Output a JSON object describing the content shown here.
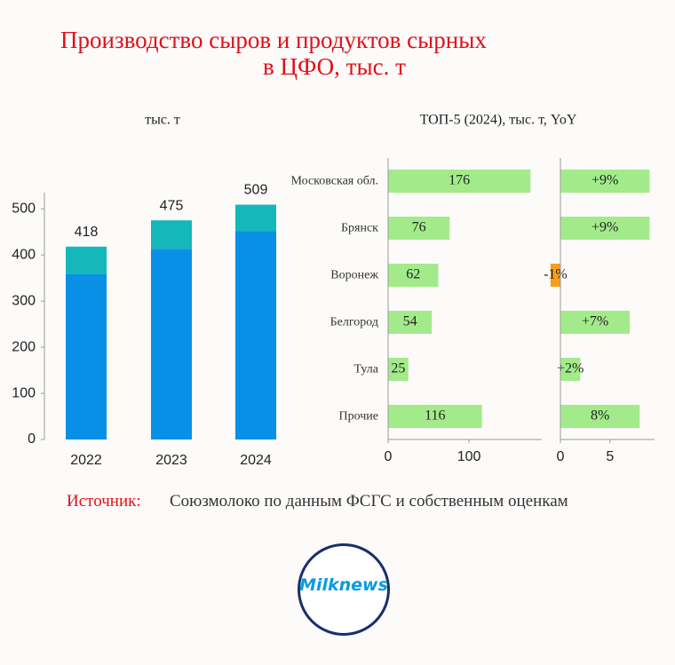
{
  "header": {
    "title_lines": [
      "Производство сыров и продуктов сырных",
      "в ЦФО, тыс. т"
    ]
  },
  "chart_data": [
    {
      "type": "stacked_bar",
      "subtitle": "тыс. т",
      "categories": [
        "2022",
        "2023",
        "2024"
      ],
      "series": [
        {
          "color": "#0a8fe6",
          "values": [
            358,
            413,
            452
          ]
        },
        {
          "color": "#14b8bb",
          "values": [
            60,
            62,
            57
          ]
        }
      ],
      "totals": [
        418,
        475,
        509
      ],
      "ylim": [
        0,
        535
      ],
      "yticks": [
        0,
        100,
        200,
        300,
        400,
        500
      ]
    },
    {
      "type": "hbar",
      "title": "ТОП-5 (2024), тыс. т, YoY",
      "categories": [
        "Московская обл.",
        "Брянск",
        "Воронеж",
        "Белгород",
        "Тула",
        "Прочие"
      ],
      "values": [
        176,
        76,
        62,
        54,
        25,
        116
      ],
      "color": "#a3eb8a",
      "xlim": [
        0,
        190
      ],
      "xticks": [
        0,
        100
      ]
    },
    {
      "type": "hbar",
      "values": [
        9,
        9,
        -1,
        7,
        2,
        8
      ],
      "value_labels": [
        "+9%",
        "+9%",
        "-1%",
        "+7%",
        "+2%",
        "8%"
      ],
      "color": "#a3eb8a",
      "negative_color": "#f5a01a",
      "xlim": [
        0,
        9.5
      ],
      "xticks": [
        0,
        5
      ]
    }
  ],
  "source": {
    "label": "Источник:",
    "text": "Союзмолоко по данным ФСГС и собственным оценкам"
  },
  "logo": "Milknews"
}
